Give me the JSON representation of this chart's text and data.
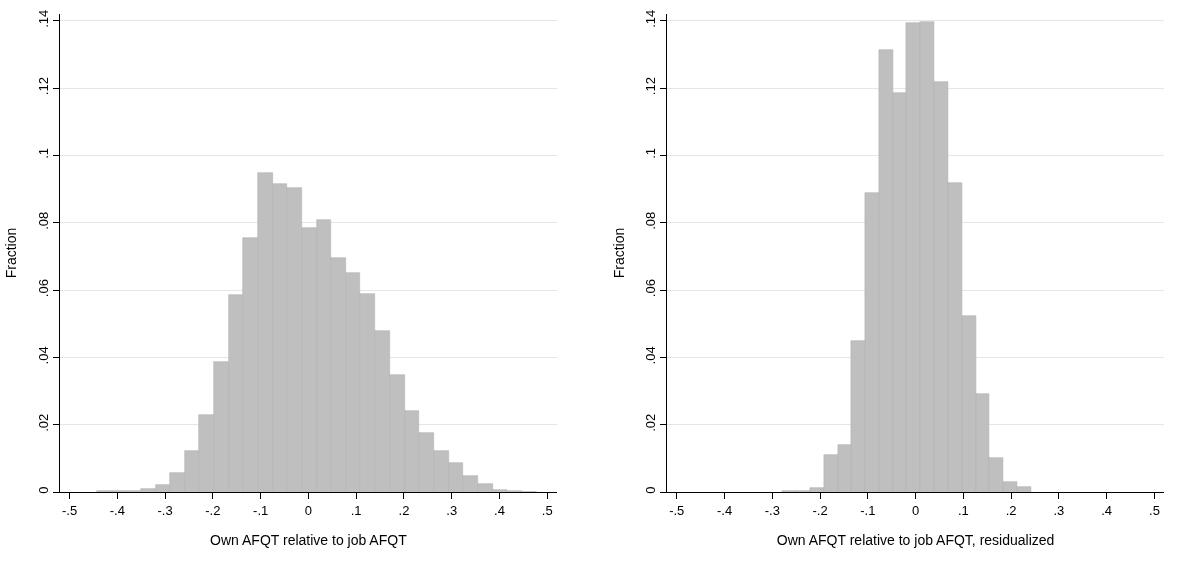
{
  "chart_data": [
    {
      "type": "histogram",
      "xlabel": "Own AFQT relative to job AFQT",
      "ylabel": "Fraction",
      "color": "#bfbfbf",
      "grid": "y",
      "bins": [
        -0.443,
        -0.412,
        -0.382,
        -0.351,
        -0.32,
        -0.29,
        -0.259,
        -0.228,
        -0.198,
        -0.167,
        -0.136,
        -0.105,
        -0.075,
        -0.044,
        -0.013,
        0.017,
        0.048,
        0.079,
        0.109,
        0.14,
        0.171,
        0.202,
        0.232,
        0.263,
        0.294,
        0.324,
        0.355,
        0.386,
        0.416,
        0.447,
        0.478
      ],
      "values": [
        0.0002,
        0.0002,
        0.0002,
        0.0009,
        0.0022,
        0.0055,
        0.0121,
        0.0228,
        0.0386,
        0.0584,
        0.0756,
        0.0948,
        0.0914,
        0.0904,
        0.0784,
        0.0807,
        0.0695,
        0.065,
        0.0588,
        0.0477,
        0.0347,
        0.024,
        0.0174,
        0.0121,
        0.0086,
        0.0047,
        0.0025,
        0.0005,
        0.0002,
        0.0001
      ],
      "xlim": [
        -0.52,
        0.52
      ],
      "ylim": [
        0,
        0.142
      ],
      "xticks": [
        {
          "value": -0.5,
          "label": "-.5"
        },
        {
          "value": -0.4,
          "label": "-.4"
        },
        {
          "value": -0.3,
          "label": "-.3"
        },
        {
          "value": -0.2,
          "label": "-.2"
        },
        {
          "value": -0.1,
          "label": "-.1"
        },
        0,
        {
          "value": 0.1,
          "label": ".1"
        },
        {
          "value": 0.2,
          "label": ".2"
        },
        {
          "value": 0.3,
          "label": ".3"
        },
        {
          "value": 0.4,
          "label": ".4"
        },
        {
          "value": 0.5,
          "label": ".5"
        }
      ],
      "yticks": [
        0,
        {
          "value": 0.02,
          "label": ".02"
        },
        {
          "value": 0.04,
          "label": ".04"
        },
        {
          "value": 0.06,
          "label": ".06"
        },
        {
          "value": 0.08,
          "label": ".08"
        },
        {
          "value": 0.1,
          "label": ".1"
        },
        {
          "value": 0.12,
          "label": ".12"
        },
        {
          "value": 0.14,
          "label": ".14"
        }
      ]
    },
    {
      "type": "histogram",
      "xlabel": "Own AFQT relative to job AFQT, residualized",
      "ylabel": "Fraction",
      "color": "#bfbfbf",
      "grid": "y",
      "bins": [
        -0.279,
        -0.25,
        -0.221,
        -0.192,
        -0.163,
        -0.134,
        -0.105,
        -0.076,
        -0.047,
        -0.019,
        0.01,
        0.039,
        0.068,
        0.097,
        0.126,
        0.155,
        0.184,
        0.213,
        0.242
      ],
      "values": [
        0.0002,
        0.0002,
        0.0012,
        0.011,
        0.014,
        0.0448,
        0.0888,
        0.1312,
        0.1185,
        0.1392,
        0.1396,
        0.1217,
        0.0919,
        0.0523,
        0.0292,
        0.01,
        0.0031,
        0.0014
      ],
      "xlim": [
        -0.52,
        0.52
      ],
      "ylim": [
        0,
        0.142
      ],
      "xticks": [
        {
          "value": -0.5,
          "label": "-.5"
        },
        {
          "value": -0.4,
          "label": "-.4"
        },
        {
          "value": -0.3,
          "label": "-.3"
        },
        {
          "value": -0.2,
          "label": "-.2"
        },
        {
          "value": -0.1,
          "label": "-.1"
        },
        0,
        {
          "value": 0.1,
          "label": ".1"
        },
        {
          "value": 0.2,
          "label": ".2"
        },
        {
          "value": 0.3,
          "label": ".3"
        },
        {
          "value": 0.4,
          "label": ".4"
        },
        {
          "value": 0.5,
          "label": ".5"
        }
      ],
      "yticks": [
        0,
        {
          "value": 0.02,
          "label": ".02"
        },
        {
          "value": 0.04,
          "label": ".04"
        },
        {
          "value": 0.06,
          "label": ".06"
        },
        {
          "value": 0.08,
          "label": ".08"
        },
        {
          "value": 0.1,
          "label": ".1"
        },
        {
          "value": 0.12,
          "label": ".12"
        },
        {
          "value": 0.14,
          "label": ".14"
        }
      ]
    }
  ]
}
